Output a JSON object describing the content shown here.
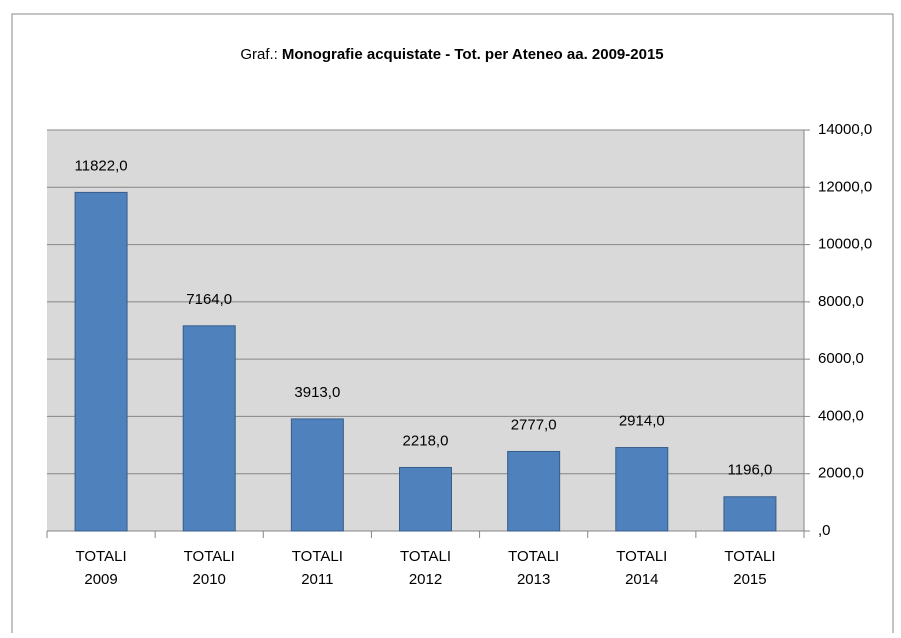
{
  "chart_data": {
    "type": "bar",
    "title_prefix": "Graf.:",
    "title": "Monografie acquistate - Tot. per Ateneo aa. 2009-2015",
    "categories": [
      "TOTALI 2009",
      "TOTALI 2010",
      "TOTALI 2011",
      "TOTALI 2012",
      "TOTALI 2013",
      "TOTALI 2014",
      "TOTALI 2015"
    ],
    "values": [
      11822,
      7164,
      3913,
      2218,
      2777,
      2914,
      1196
    ],
    "value_labels": [
      "11822,0",
      "7164,0",
      "3913,0",
      "2218,0",
      "2777,0",
      "2914,0",
      "1196,0"
    ],
    "color": "#4f81bd",
    "ylim": [
      0,
      14000
    ],
    "yticks": [
      {
        "value": 0,
        "label": ",0"
      },
      {
        "value": 2000,
        "label": "2000,0"
      },
      {
        "value": 4000,
        "label": "4000,0"
      },
      {
        "value": 6000,
        "label": "6000,0"
      },
      {
        "value": 8000,
        "label": "8000,0"
      },
      {
        "value": 10000,
        "label": "10000,0"
      },
      {
        "value": 12000,
        "label": "12000,0"
      },
      {
        "value": 14000,
        "label": "14000,0"
      }
    ],
    "y_axis_side": "right",
    "grid": true
  }
}
